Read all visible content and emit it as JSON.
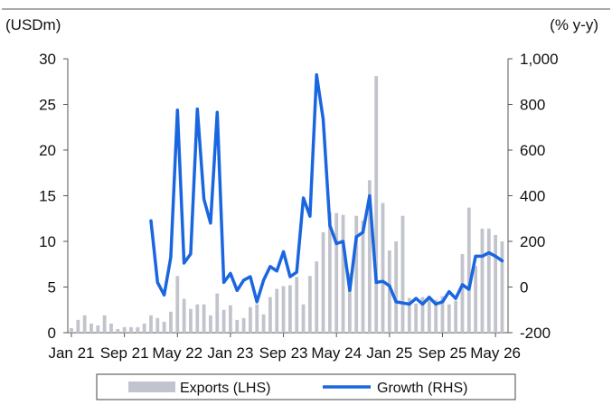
{
  "chart_data": {
    "type": "bar+line",
    "left_unit": "(USDm)",
    "right_unit": "(% y-y)",
    "left_axis": {
      "min": 0,
      "max": 30,
      "ticks": [
        0,
        5,
        10,
        15,
        20,
        25,
        30
      ],
      "tick_labels": [
        "0",
        "5",
        "10",
        "15",
        "20",
        "25",
        "30"
      ]
    },
    "right_axis": {
      "min": -200,
      "max": 1000,
      "ticks": [
        -200,
        0,
        200,
        400,
        600,
        800,
        1000
      ],
      "tick_labels": [
        "-200",
        "0",
        "200",
        "400",
        "600",
        "800",
        "1,000"
      ]
    },
    "x_tick_labels": [
      "Jan 21",
      "Sep 21",
      "May 22",
      "Jan 23",
      "Sep 23",
      "May 24",
      "Jan 25",
      "Sep 25",
      "May 26"
    ],
    "x_tick_months": [
      0,
      8,
      16,
      24,
      32,
      40,
      48,
      56,
      64
    ],
    "month_count": 66,
    "legend": [
      "Exports (LHS)",
      "Growth (RHS)"
    ],
    "colors": {
      "bars": "#c2c4cd",
      "line": "#1a66e0",
      "axis": "#555555"
    },
    "series": [
      {
        "name": "Exports (LHS)",
        "values": [
          0.5,
          1.4,
          1.9,
          1.0,
          0.8,
          1.9,
          1.0,
          0.4,
          0.6,
          0.6,
          0.6,
          1.0,
          1.9,
          1.6,
          1.2,
          2.3,
          6.2,
          3.7,
          2.6,
          3.1,
          3.1,
          1.9,
          4.3,
          2.5,
          3.0,
          1.4,
          1.6,
          2.8,
          3.1,
          2.0,
          3.9,
          4.8,
          5.1,
          5.2,
          6.1,
          3.1,
          6.2,
          7.8,
          11.0,
          13.2,
          13.1,
          12.9,
          6.5,
          12.8,
          12.3,
          16.7,
          28.1,
          14.2,
          9.0,
          10.0,
          12.8,
          3.8,
          3.2,
          3.9,
          4.0,
          3.6,
          4.0,
          3.1,
          3.5,
          8.6,
          13.7,
          7.3,
          11.4,
          11.4,
          10.7,
          10.0
        ]
      },
      {
        "name": "Growth (RHS)",
        "values": [
          null,
          null,
          null,
          null,
          null,
          null,
          null,
          null,
          null,
          null,
          null,
          null,
          290,
          20,
          -35,
          130,
          775,
          105,
          145,
          780,
          385,
          280,
          765,
          20,
          60,
          -15,
          30,
          45,
          -65,
          30,
          90,
          70,
          155,
          45,
          65,
          390,
          310,
          930,
          735,
          270,
          190,
          200,
          -15,
          220,
          240,
          400,
          20,
          25,
          5,
          -65,
          -70,
          -75,
          -50,
          -75,
          -45,
          -75,
          -65,
          -20,
          -50,
          10,
          -10,
          135,
          135,
          150,
          135,
          115
        ]
      }
    ]
  }
}
